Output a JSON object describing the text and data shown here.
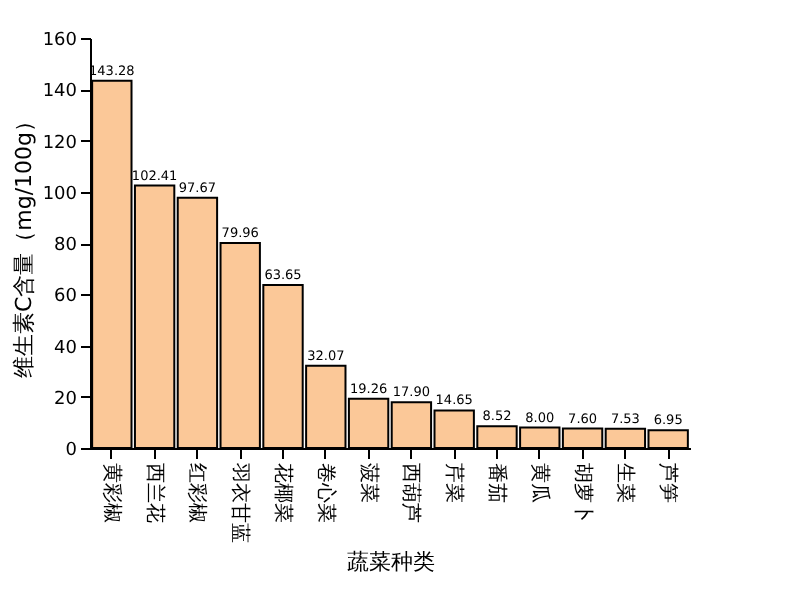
{
  "chart_data": {
    "type": "bar",
    "xlabel": "蔬菜种类",
    "ylabel": "维生素C含量（mg/100g）",
    "categories": [
      "黄彩椒",
      "西兰花",
      "红彩椒",
      "羽衣甘蓝",
      "花椰菜",
      "卷心菜",
      "菠菜",
      "西葫芦",
      "芹菜",
      "番茄",
      "黄瓜",
      "胡萝卜",
      "生菜",
      "芦笋"
    ],
    "values": [
      143.28,
      102.41,
      97.67,
      79.96,
      63.65,
      32.07,
      19.26,
      17.9,
      14.65,
      8.52,
      8.0,
      7.6,
      7.53,
      6.95
    ],
    "value_labels": [
      "143.28",
      "102.41",
      "97.67",
      "79.96",
      "63.65",
      "32.07",
      "19.26",
      "17.90",
      "14.65",
      "8.52",
      "8.00",
      "7.60",
      "7.53",
      "6.95"
    ],
    "color": "#fbc898",
    "ylim": [
      0,
      160
    ],
    "yticks": [
      0,
      20,
      40,
      60,
      80,
      100,
      120,
      140,
      160
    ],
    "grid": false
  }
}
